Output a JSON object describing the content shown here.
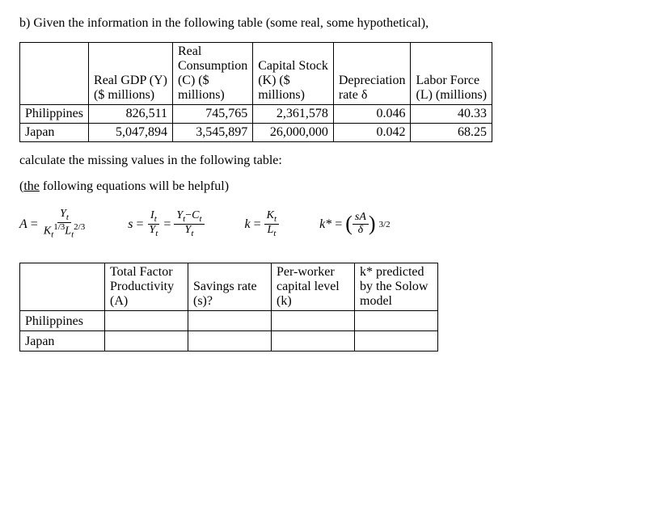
{
  "problem_intro": "b) Given the information in the following table (some real, some hypothetical),",
  "table1": {
    "headers": {
      "country": "",
      "gdp_l1": "Real GDP (Y)",
      "gdp_l2": "($ millions)",
      "cons_l1": "Real",
      "cons_l2": "Consumption",
      "cons_l3": "(C) ($",
      "cons_l4": "millions)",
      "cap_l1": "Capital Stock",
      "cap_l2": "(K) ($",
      "cap_l3": "millions)",
      "dep_l1": "Depreciation",
      "dep_l2": "rate δ",
      "lab_l1": "Labor Force",
      "lab_l2": "(L) (millions)"
    },
    "rows": [
      {
        "country": "Philippines",
        "gdp": "826,511",
        "cons": "745,765",
        "cap": "2,361,578",
        "dep": "0.046",
        "lab": "40.33"
      },
      {
        "country": "Japan",
        "gdp": "5,047,894",
        "cons": "3,545,897",
        "cap": "26,000,000",
        "dep": "0.042",
        "lab": "68.25"
      }
    ]
  },
  "instr1": "calculate the missing values in the following table:",
  "instr2_prefix": "(",
  "instr2_under": "the",
  "instr2_rest": " following equations will be helpful)",
  "eq": {
    "A_lhs": "A",
    "eqs": "=",
    "Yt": "Y",
    "t": "t",
    "Kt13": "K",
    "exp13": "1/3",
    "Lt": "L",
    "exp23": "2/3",
    "s_lhs": "s",
    "It": "I",
    "YmC": "Y",
    "minus": "−",
    "Ct": "C",
    "k_lhs": "k",
    "Kt": "K",
    "kstar": "k*",
    "sA": "sA",
    "delta": "δ",
    "exp32": "3/2"
  },
  "table2": {
    "headers": {
      "country": "",
      "a_l1": "Total Factor",
      "a_l2": "Productivity",
      "a_l3": "(A)",
      "s_l1": "Savings rate",
      "s_l2": "(s)?",
      "k_l1": "Per-worker",
      "k_l2": "capital level",
      "k_l3": "(k)",
      "ks_l1": "k* predicted",
      "ks_l2": "by the Solow",
      "ks_l3": "model"
    },
    "rows": [
      "Philippines",
      "Japan"
    ]
  }
}
